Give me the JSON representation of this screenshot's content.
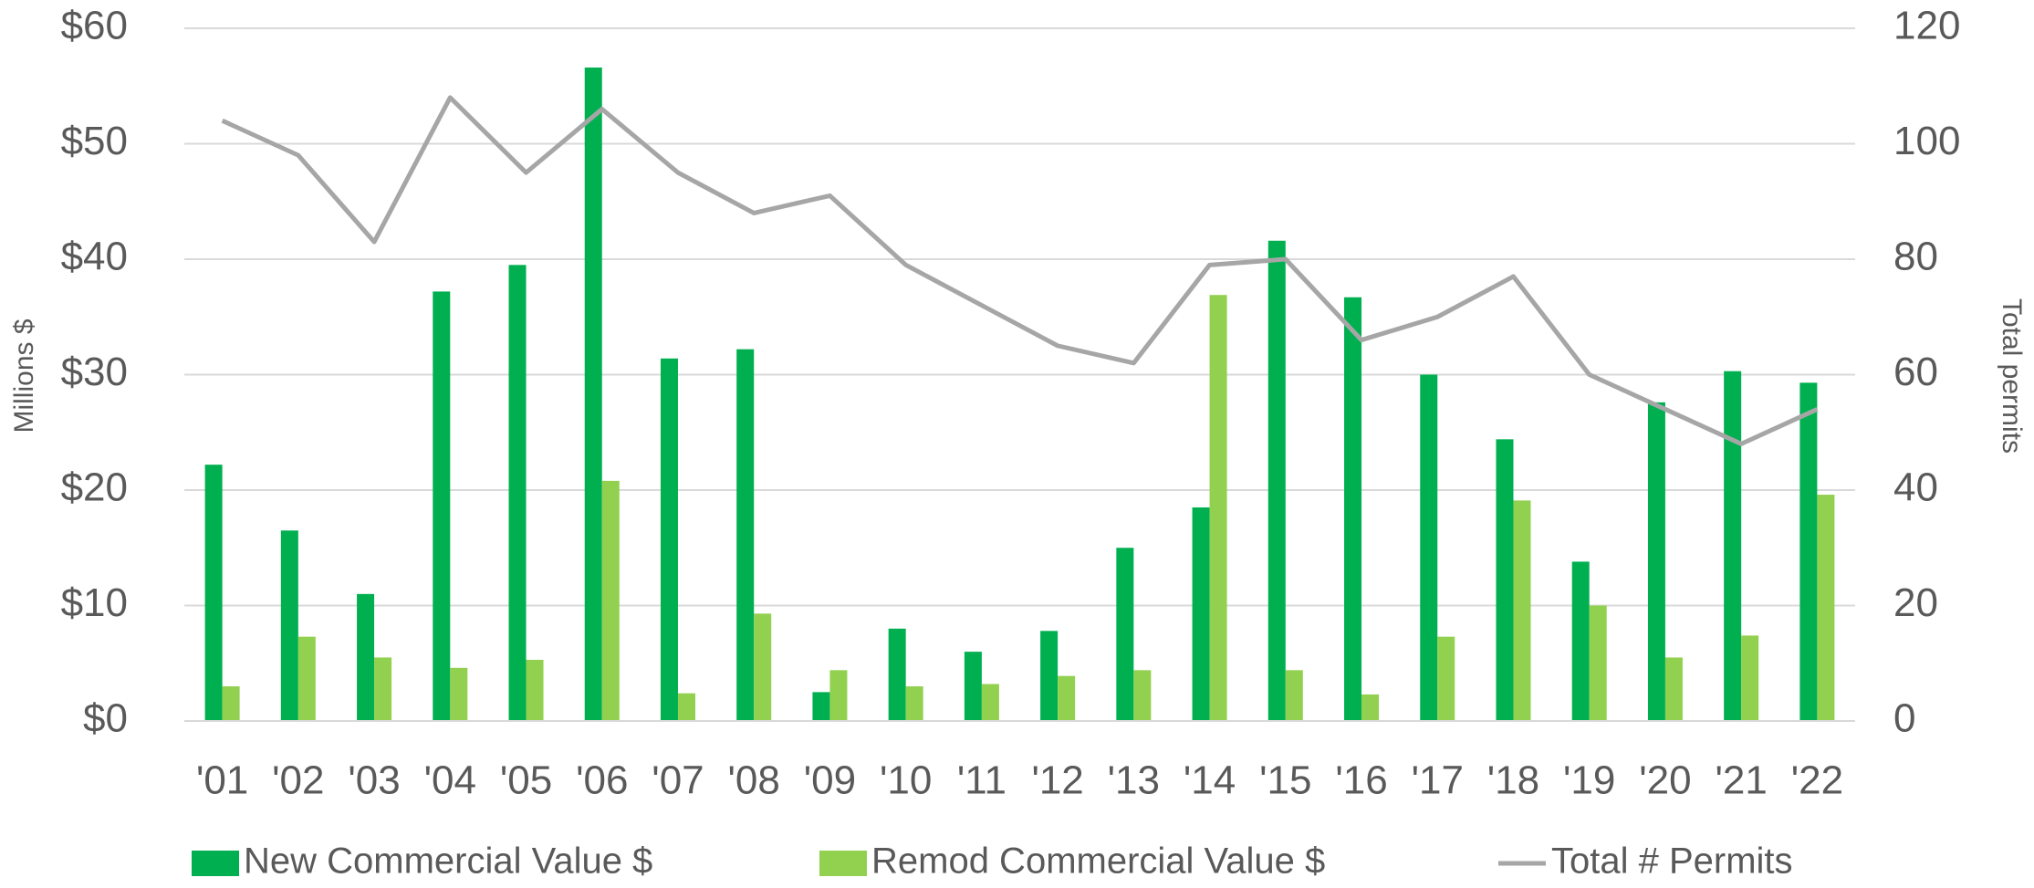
{
  "chart_data": {
    "type": "bar-line",
    "categories": [
      "'01",
      "'02",
      "'03",
      "'04",
      "'05",
      "'06",
      "'07",
      "'08",
      "'09",
      "'10",
      "'11",
      "'12",
      "'13",
      "'14",
      "'15",
      "'16",
      "'17",
      "'18",
      "'19",
      "'20",
      "'21",
      "'22"
    ],
    "series": [
      {
        "name": "New Commercial Value $",
        "color": "#00b050",
        "type": "bar",
        "values": [
          22.2,
          16.5,
          11,
          37.2,
          39.5,
          56.6,
          31.4,
          32.2,
          2.5,
          8,
          6,
          7.8,
          15,
          18.5,
          41.6,
          36.7,
          30,
          24.4,
          13.8,
          27.6,
          30.3,
          29.3
        ]
      },
      {
        "name": "Remod Commercial Value $",
        "color": "#92d050",
        "type": "bar",
        "values": [
          3,
          7.3,
          5.5,
          4.6,
          5.3,
          20.8,
          2.4,
          9.3,
          4.4,
          3,
          3.2,
          3.9,
          4.4,
          36.9,
          4.4,
          2.3,
          7.3,
          19.1,
          10,
          5.5,
          7.4,
          19.6
        ]
      },
      {
        "name": "Total # Permits",
        "color": "#a6a6a6",
        "type": "line",
        "axis": "y2",
        "values": [
          104,
          98,
          83,
          108,
          95,
          106,
          95,
          88,
          91,
          79,
          72,
          65,
          62,
          79,
          80,
          66,
          70,
          77,
          60,
          54,
          48,
          54
        ]
      }
    ],
    "y_label": "Millions $",
    "y2_label": "Total permits",
    "ylim": [
      0,
      60
    ],
    "yticks": [
      {
        "value": 0,
        "label": "$0"
      },
      {
        "value": 10,
        "label": "$10"
      },
      {
        "value": 20,
        "label": "$20"
      },
      {
        "value": 30,
        "label": "$30"
      },
      {
        "value": 40,
        "label": "$40"
      },
      {
        "value": 50,
        "label": "$50"
      },
      {
        "value": 60,
        "label": "$60"
      }
    ],
    "y2lim": [
      0,
      120
    ],
    "y2ticks": [
      0,
      20,
      40,
      60,
      80,
      100,
      120
    ],
    "grid": true,
    "legend": "bottom"
  }
}
